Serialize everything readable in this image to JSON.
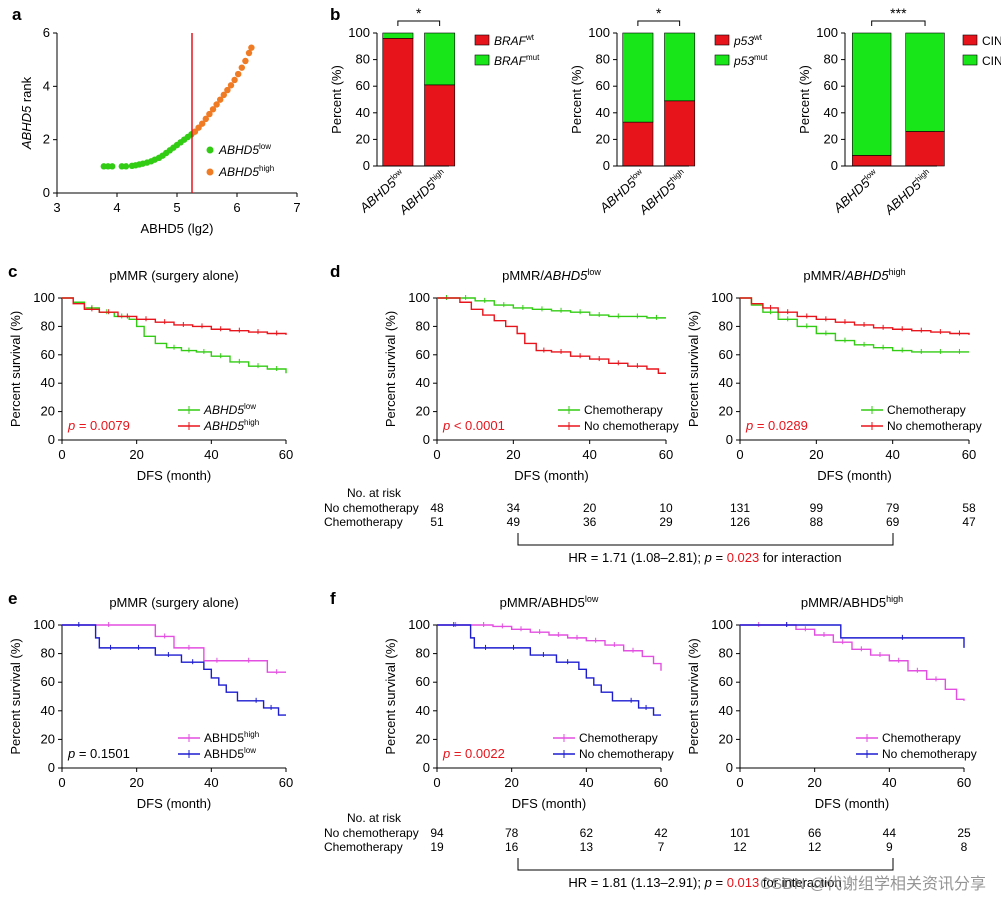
{
  "figure": {
    "watermark": "CSDN @代谢组学相关资讯分享",
    "colors": {
      "red": "#e8141c",
      "green": "#33cc14",
      "orange": "#f07b25",
      "magenta": "#e34fe0",
      "blue": "#1c1cd0",
      "bar_green": "#19e619"
    }
  },
  "chart_data": [
    {
      "id": "a",
      "panel_letter": "a",
      "type": "scatter",
      "xlabel": "ABHD5 (lg2)",
      "ylabel": "ABHD5 rank",
      "xlim": [
        3,
        7
      ],
      "ylim": [
        0,
        6
      ],
      "xticks": [
        "3",
        "4",
        "5",
        "6",
        "7"
      ],
      "yticks": [
        "0",
        "2",
        "4",
        "6"
      ],
      "threshold_x": 5.25,
      "series": [
        {
          "name": "ABHD5",
          "sup": "low",
          "color": "#33cc14",
          "x": [
            3.78,
            3.85,
            3.92,
            4.08,
            4.15,
            4.25,
            4.31,
            4.37,
            4.43,
            4.5,
            4.57,
            4.63,
            4.7,
            4.76,
            4.82,
            4.88,
            4.94,
            5.0,
            5.06,
            5.12,
            5.18,
            5.24
          ],
          "y": [
            1.0,
            1.0,
            1.0,
            1.0,
            1.0,
            1.02,
            1.04,
            1.07,
            1.1,
            1.14,
            1.19,
            1.25,
            1.32,
            1.4,
            1.5,
            1.6,
            1.7,
            1.8,
            1.9,
            2.0,
            2.1,
            2.2
          ]
        },
        {
          "name": "ABHD5",
          "sup": "high",
          "color": "#f07b25",
          "x": [
            5.3,
            5.36,
            5.42,
            5.48,
            5.54,
            5.6,
            5.66,
            5.72,
            5.78,
            5.84,
            5.9,
            5.96,
            6.02,
            6.08,
            6.14,
            6.2,
            6.24
          ],
          "y": [
            2.3,
            2.45,
            2.6,
            2.78,
            2.96,
            3.14,
            3.32,
            3.5,
            3.68,
            3.86,
            4.04,
            4.24,
            4.46,
            4.7,
            4.95,
            5.25,
            5.45
          ]
        }
      ]
    },
    {
      "id": "b1",
      "panel_letter": "b",
      "type": "bar",
      "stacked": true,
      "ylabel": "Percent (%)",
      "ylim": [
        0,
        100
      ],
      "yticks": [
        "0",
        "20",
        "40",
        "60",
        "80",
        "100"
      ],
      "categories": [
        {
          "name": "ABHD5",
          "sup": "low"
        },
        {
          "name": "ABHD5",
          "sup": "high"
        }
      ],
      "series": [
        {
          "name": "BRAF",
          "sup": "wt",
          "color": "#e8141c",
          "values": [
            96,
            61
          ]
        },
        {
          "name": "BRAF",
          "sup": "mut",
          "color": "#19e619",
          "values": [
            4,
            39
          ]
        }
      ],
      "significance": "*"
    },
    {
      "id": "b2",
      "type": "bar",
      "stacked": true,
      "ylabel": "Percent (%)",
      "ylim": [
        0,
        100
      ],
      "yticks": [
        "0",
        "20",
        "40",
        "60",
        "80",
        "100"
      ],
      "categories": [
        {
          "name": "ABHD5",
          "sup": "low"
        },
        {
          "name": "ABHD5",
          "sup": "high"
        }
      ],
      "series": [
        {
          "name": "p53",
          "sup": "wt",
          "color": "#e8141c",
          "values": [
            33,
            49
          ]
        },
        {
          "name": "p53",
          "sup": "mut",
          "color": "#19e619",
          "values": [
            67,
            51
          ]
        }
      ],
      "significance": "*"
    },
    {
      "id": "b3",
      "type": "bar",
      "stacked": true,
      "ylabel": "Percent (%)",
      "ylim": [
        0,
        100
      ],
      "yticks": [
        "0",
        "20",
        "40",
        "60",
        "80",
        "100"
      ],
      "categories": [
        {
          "name": "ABHD5",
          "sup": "low"
        },
        {
          "name": "ABHD5",
          "sup": "high"
        }
      ],
      "series": [
        {
          "name": "CIN",
          "sup": "−",
          "color": "#e8141c",
          "values": [
            8,
            26
          ]
        },
        {
          "name": "CIN",
          "sup": "+",
          "color": "#19e619",
          "values": [
            92,
            74
          ]
        }
      ],
      "significance": "***"
    },
    {
      "id": "c",
      "panel_letter": "c",
      "type": "line",
      "step": true,
      "title": "pMMR (surgery alone)",
      "xlabel": "DFS (month)",
      "ylabel": "Percent survival (%)",
      "xlim": [
        0,
        60
      ],
      "ylim": [
        0,
        100
      ],
      "xticks": [
        "0",
        "20",
        "40",
        "60"
      ],
      "yticks": [
        "0",
        "20",
        "40",
        "60",
        "80",
        "100"
      ],
      "p_label": "p",
      "p_value": " = 0.0079",
      "legend_pos": "bottom-right",
      "series": [
        {
          "name": "ABHD5",
          "sup": "low",
          "color": "#33cc14",
          "x": [
            0,
            3,
            6,
            10,
            14,
            18,
            20,
            22,
            25,
            28,
            32,
            36,
            40,
            45,
            50,
            55,
            60
          ],
          "y": [
            100,
            97,
            93,
            90,
            87,
            85,
            80,
            73,
            68,
            65,
            63,
            62,
            59,
            55,
            52,
            50,
            47
          ]
        },
        {
          "name": "ABHD5",
          "sup": "high",
          "color": "#e8141c",
          "x": [
            0,
            3,
            6,
            10,
            15,
            20,
            25,
            30,
            35,
            40,
            45,
            50,
            55,
            60
          ],
          "y": [
            100,
            96,
            92,
            90,
            87,
            85,
            83,
            81,
            80,
            78,
            77,
            76,
            75,
            74
          ]
        }
      ]
    },
    {
      "id": "d1",
      "panel_letter": "d",
      "type": "line",
      "step": true,
      "title": "pMMR/",
      "title_name": "ABHD5",
      "title_sup": "low",
      "xlabel": "DFS (month)",
      "ylabel": "Percent survival (%)",
      "xlim": [
        0,
        60
      ],
      "ylim": [
        0,
        100
      ],
      "xticks": [
        "0",
        "20",
        "40",
        "60"
      ],
      "yticks": [
        "0",
        "20",
        "40",
        "60",
        "80",
        "100"
      ],
      "p_label": "p",
      "p_value": " < 0.0001",
      "legend_pos": "bottom-right",
      "series": [
        {
          "name": "Chemotherapy",
          "color": "#33cc14",
          "x": [
            0,
            5,
            10,
            15,
            20,
            25,
            30,
            35,
            40,
            45,
            50,
            55,
            60
          ],
          "y": [
            100,
            100,
            98,
            95,
            93,
            92,
            91,
            90,
            88,
            87,
            87,
            86,
            86
          ]
        },
        {
          "name": "No chemotherapy",
          "color": "#e8141c",
          "x": [
            0,
            3,
            6,
            9,
            12,
            15,
            18,
            21,
            23,
            26,
            30,
            35,
            40,
            45,
            50,
            55,
            58,
            60
          ],
          "y": [
            100,
            100,
            97,
            92,
            88,
            84,
            80,
            75,
            68,
            63,
            62,
            59,
            57,
            54,
            52,
            50,
            47,
            47
          ]
        }
      ],
      "at_risk": {
        "No chemotherapy": [
          "48",
          "34",
          "20",
          "10"
        ],
        "Chemotherapy": [
          "51",
          "49",
          "36",
          "29"
        ]
      }
    },
    {
      "id": "d2",
      "type": "line",
      "step": true,
      "title": "pMMR/",
      "title_name": "ABHD5",
      "title_sup": "high",
      "xlabel": "DFS (month)",
      "ylabel": "Percent survival (%)",
      "xlim": [
        0,
        60
      ],
      "ylim": [
        0,
        100
      ],
      "xticks": [
        "0",
        "20",
        "40",
        "60"
      ],
      "yticks": [
        "0",
        "20",
        "40",
        "60",
        "80",
        "100"
      ],
      "p_label": "p",
      "p_value": " = 0.0289",
      "legend_pos": "bottom-right",
      "series": [
        {
          "name": "Chemotherapy",
          "color": "#33cc14",
          "x": [
            0,
            3,
            6,
            10,
            15,
            20,
            25,
            30,
            35,
            40,
            45,
            50,
            55,
            60
          ],
          "y": [
            100,
            95,
            90,
            85,
            80,
            75,
            70,
            67,
            65,
            63,
            62,
            62,
            62,
            62
          ]
        },
        {
          "name": "No chemotherapy",
          "color": "#e8141c",
          "x": [
            0,
            3,
            6,
            10,
            15,
            20,
            25,
            30,
            35,
            40,
            45,
            50,
            55,
            60
          ],
          "y": [
            100,
            96,
            93,
            90,
            87,
            85,
            83,
            81,
            79,
            78,
            77,
            76,
            75,
            74
          ]
        }
      ],
      "at_risk": {
        "No chemotherapy": [
          "131",
          "99",
          "79",
          "58"
        ],
        "Chemotherapy": [
          "126",
          "88",
          "69",
          "47"
        ]
      }
    },
    {
      "id": "e",
      "panel_letter": "e",
      "type": "line",
      "step": true,
      "title": "pMMR (surgery alone)",
      "xlabel": "DFS (month)",
      "ylabel": "Percent survival (%)",
      "xlim": [
        0,
        60
      ],
      "ylim": [
        0,
        100
      ],
      "xticks": [
        "0",
        "20",
        "40",
        "60"
      ],
      "yticks": [
        "0",
        "20",
        "40",
        "60",
        "80",
        "100"
      ],
      "p_label": "p",
      "p_value": " = 0.1501",
      "p_color": "#000000",
      "legend_pos": "bottom-right",
      "series": [
        {
          "name": "ABHD5",
          "sup": "high",
          "color": "#e34fe0",
          "x": [
            0,
            25,
            30,
            38,
            45,
            55,
            60
          ],
          "y": [
            100,
            92,
            84,
            75,
            75,
            67,
            67
          ]
        },
        {
          "name": "ABHD5",
          "sup": "low",
          "color": "#1c1cd0",
          "x": [
            0,
            9,
            10,
            16,
            25,
            32,
            38,
            40,
            42,
            44,
            47,
            50,
            54,
            58,
            60
          ],
          "y": [
            100,
            91,
            84,
            84,
            79,
            74,
            69,
            63,
            58,
            53,
            47,
            47,
            42,
            37,
            37
          ]
        }
      ]
    },
    {
      "id": "f1",
      "panel_letter": "f",
      "type": "line",
      "step": true,
      "title": "pMMR/ABHD5",
      "title_sup": "low",
      "xlabel": "DFS (month)",
      "ylabel": "Percent survival (%)",
      "xlim": [
        0,
        60
      ],
      "ylim": [
        0,
        100
      ],
      "xticks": [
        "0",
        "20",
        "40",
        "60"
      ],
      "yticks": [
        "0",
        "20",
        "40",
        "60",
        "80",
        "100"
      ],
      "p_label": "p",
      "p_value": " = 0.0022",
      "legend_pos": "bottom-right",
      "series": [
        {
          "name": "Chemotherapy",
          "color": "#e34fe0",
          "x": [
            0,
            10,
            15,
            20,
            25,
            30,
            35,
            40,
            45,
            50,
            55,
            58,
            60
          ],
          "y": [
            100,
            100,
            99,
            97,
            95,
            93,
            91,
            89,
            86,
            82,
            78,
            73,
            68
          ]
        },
        {
          "name": "No chemotherapy",
          "color": "#1c1cd0",
          "x": [
            0,
            9,
            10,
            16,
            25,
            32,
            38,
            40,
            42,
            44,
            47,
            50,
            54,
            58,
            60
          ],
          "y": [
            100,
            91,
            84,
            84,
            79,
            74,
            69,
            63,
            58,
            53,
            47,
            47,
            42,
            37,
            37
          ]
        }
      ],
      "at_risk": {
        "No chemotherapy": [
          "94",
          "78",
          "62",
          "42"
        ],
        "Chemotherapy": [
          "19",
          "16",
          "13",
          "7"
        ]
      }
    },
    {
      "id": "f2",
      "type": "line",
      "step": true,
      "title": "pMMR/ABHD5",
      "title_sup": "high",
      "xlabel": "DFS (month)",
      "ylabel": "Percent survival (%)",
      "xlim": [
        0,
        60
      ],
      "ylim": [
        0,
        100
      ],
      "xticks": [
        "0",
        "20",
        "40",
        "60"
      ],
      "yticks": [
        "0",
        "20",
        "40",
        "60",
        "80",
        "100"
      ],
      "legend_pos": "bottom-right",
      "series": [
        {
          "name": "Chemotherapy",
          "color": "#e34fe0",
          "x": [
            0,
            10,
            15,
            20,
            25,
            30,
            35,
            40,
            45,
            50,
            55,
            58,
            60
          ],
          "y": [
            100,
            100,
            97,
            93,
            88,
            83,
            79,
            75,
            68,
            62,
            55,
            48,
            47
          ]
        },
        {
          "name": "No chemotherapy",
          "color": "#1c1cd0",
          "x": [
            0,
            25,
            27,
            60
          ],
          "y": [
            100,
            100,
            91,
            84
          ]
        }
      ],
      "at_risk": {
        "No chemotherapy": [
          "101",
          "66",
          "44",
          "25"
        ],
        "Chemotherapy": [
          "12",
          "12",
          "9",
          "8"
        ]
      }
    }
  ],
  "risk_tables": [
    {
      "header": "No. at risk",
      "rows": [
        "No chemotherapy",
        "Chemotherapy"
      ],
      "hr_text": "HR = 1.71 (1.08–2.81); ",
      "hr_p_label": "p",
      "hr_p_eq": " = ",
      "hr_p_value": "0.023",
      "hr_suffix": " for interaction"
    },
    {
      "header": "No. at risk",
      "rows": [
        "No chemotherapy",
        "Chemotherapy"
      ],
      "hr_text": "HR = 1.81 (1.13–2.91); ",
      "hr_p_label": "p",
      "hr_p_eq": " = ",
      "hr_p_value": "0.013",
      "hr_suffix": " for interaction"
    }
  ]
}
